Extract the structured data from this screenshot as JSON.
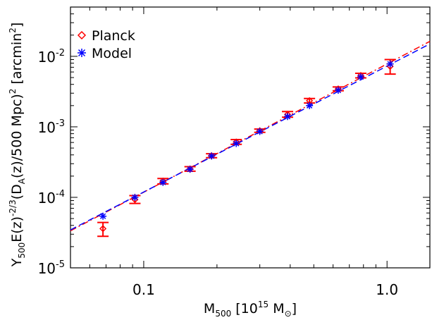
{
  "chart_data": {
    "type": "scatter",
    "x_scale": "log",
    "y_scale": "log",
    "xlim": [
      0.05,
      1.5
    ],
    "ylim": [
      1e-05,
      0.05
    ],
    "grid": false,
    "legend_position": "top-left",
    "xlabel": {
      "main": "M",
      "sub": "500",
      "pre": "[10",
      "sup": "15",
      "post": "M",
      "close": "]"
    },
    "ylabel": {
      "parts": [
        {
          "t": "Y",
          "s": "normal"
        },
        {
          "t": "500",
          "s": "sub"
        },
        {
          "t": "E(z)",
          "s": "normal"
        },
        {
          "t": "-2/3",
          "s": "sup"
        },
        {
          "t": "(D",
          "s": "normal"
        },
        {
          "t": "A",
          "s": "sub"
        },
        {
          "t": "(z)/500 Mpc)",
          "s": "normal"
        },
        {
          "t": "2",
          "s": "sup"
        },
        {
          "t": " [arcmin",
          "s": "normal"
        },
        {
          "t": "2",
          "s": "sup"
        },
        {
          "t": "]",
          "s": "normal"
        }
      ]
    },
    "x_ticks": [
      {
        "value": 0.1,
        "label": "0.1"
      },
      {
        "value": 1.0,
        "label": "1.0"
      }
    ],
    "y_ticks": [
      {
        "value": 1e-05,
        "mantissa": "10",
        "exp": "-5"
      },
      {
        "value": 0.0001,
        "mantissa": "10",
        "exp": "-4"
      },
      {
        "value": 0.001,
        "mantissa": "10",
        "exp": "-3"
      },
      {
        "value": 0.01,
        "mantissa": "10",
        "exp": "-2"
      }
    ],
    "series": [
      {
        "name": "Planck",
        "marker": "diamond",
        "color": "#ff0000",
        "x": [
          0.068,
          0.092,
          0.12,
          0.155,
          0.19,
          0.24,
          0.3,
          0.39,
          0.48,
          0.63,
          0.78,
          1.03
        ],
        "y": [
          3.6e-05,
          9.3e-05,
          0.00017,
          0.000253,
          0.00039,
          0.00061,
          0.00088,
          0.0015,
          0.00235,
          0.00345,
          0.00535,
          0.0072
        ],
        "y_err_low": [
          2.8e-05,
          8.2e-05,
          0.000155,
          0.000235,
          0.000365,
          0.000565,
          0.000835,
          0.00137,
          0.00218,
          0.00325,
          0.00495,
          0.0056
        ],
        "y_err_high": [
          4.4e-05,
          0.000106,
          0.000185,
          0.000272,
          0.000415,
          0.00066,
          0.00093,
          0.00165,
          0.00252,
          0.00368,
          0.00575,
          0.009
        ]
      },
      {
        "name": "Model",
        "marker": "asterisk",
        "color": "#0000ff",
        "x": [
          0.068,
          0.092,
          0.12,
          0.155,
          0.19,
          0.24,
          0.3,
          0.39,
          0.48,
          0.63,
          0.78,
          1.03
        ],
        "y": [
          5.4e-05,
          0.0001,
          0.000163,
          0.00025,
          0.000385,
          0.00058,
          0.00086,
          0.0014,
          0.002,
          0.0033,
          0.0051,
          0.0078
        ]
      }
    ],
    "fit_lines": [
      {
        "color": "#ff0000",
        "style": "dashdot",
        "x": [
          0.05,
          1.5
        ],
        "y": [
          3.35e-05,
          0.0163
        ]
      },
      {
        "color": "#0000ff",
        "style": "dashed",
        "x": [
          0.05,
          1.5
        ],
        "y": [
          3.45e-05,
          0.015
        ]
      }
    ]
  }
}
